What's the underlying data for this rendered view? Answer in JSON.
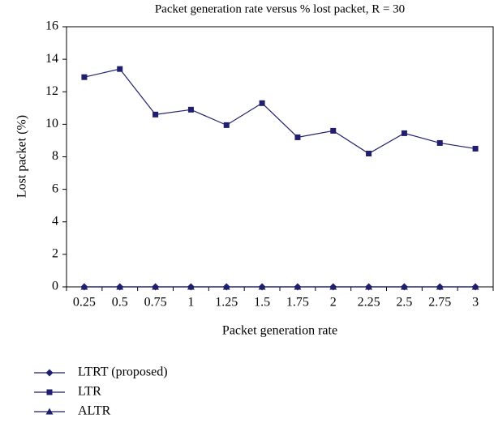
{
  "chart_data": {
    "type": "line",
    "title": "Packet generation rate versus % lost packet, R = 30",
    "xlabel": "Packet generation rate",
    "ylabel": "Lost packet (%)",
    "categories": [
      "0.25",
      "0.5",
      "0.75",
      "1",
      "1.25",
      "1.5",
      "1.75",
      "2",
      "2.25",
      "2.5",
      "2.75",
      "3"
    ],
    "ylim": [
      0,
      16
    ],
    "yticks": [
      0,
      2,
      4,
      6,
      8,
      10,
      12,
      14,
      16
    ],
    "legend": "bottom",
    "series": [
      {
        "name": "LTRT (proposed)",
        "color": "#1f1f6e",
        "marker": "diamond",
        "values": [
          0,
          0,
          0,
          0,
          0,
          0,
          0,
          0,
          0,
          0,
          0,
          0
        ]
      },
      {
        "name": "LTR",
        "color": "#1f1f6e",
        "marker": "square",
        "values": [
          12.9,
          13.4,
          10.6,
          10.9,
          9.95,
          11.3,
          9.2,
          9.6,
          8.2,
          9.45,
          8.85,
          8.5
        ]
      },
      {
        "name": "ALTR",
        "color": "#1f1f6e",
        "marker": "triangle",
        "values": [
          0,
          0,
          0,
          0,
          0,
          0,
          0,
          0,
          0,
          0,
          0,
          0
        ]
      }
    ]
  }
}
